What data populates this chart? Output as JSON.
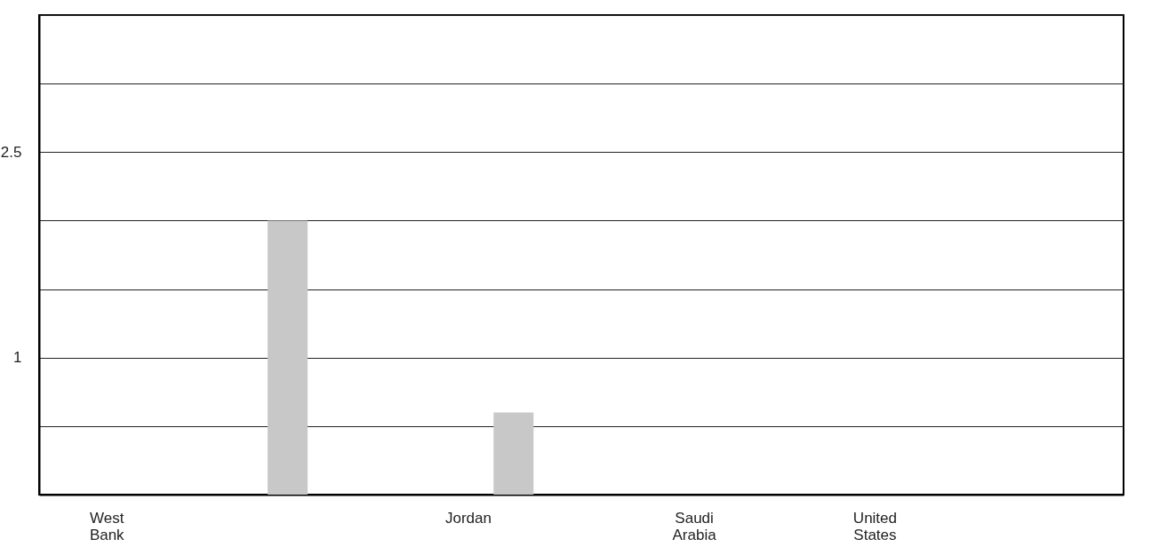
{
  "chart_data": {
    "type": "bar",
    "categories": [
      null,
      "West Bank",
      null,
      null,
      null,
      null,
      null,
      null,
      null,
      "Jordan",
      null,
      null,
      null,
      null,
      "Saudi Arabia",
      null,
      null,
      null,
      "United States",
      null,
      null,
      null,
      null,
      null
    ],
    "values": [
      null,
      null,
      null,
      null,
      null,
      2.0,
      null,
      null,
      null,
      null,
      0.6,
      null,
      null,
      null,
      null,
      null,
      null,
      null,
      null,
      null,
      null,
      null,
      null,
      null
    ],
    "color": "#c8c8c8",
    "ylim": [
      0,
      3.5
    ],
    "yticks": [
      {
        "value": 0,
        "label": null
      },
      {
        "value": 0.5,
        "label": null
      },
      1,
      {
        "value": 1.5,
        "label": null
      },
      {
        "value": 2,
        "label": null
      },
      2.5,
      {
        "value": 3,
        "label": null
      },
      {
        "value": 3.5,
        "label": null
      }
    ],
    "grid": "y"
  }
}
